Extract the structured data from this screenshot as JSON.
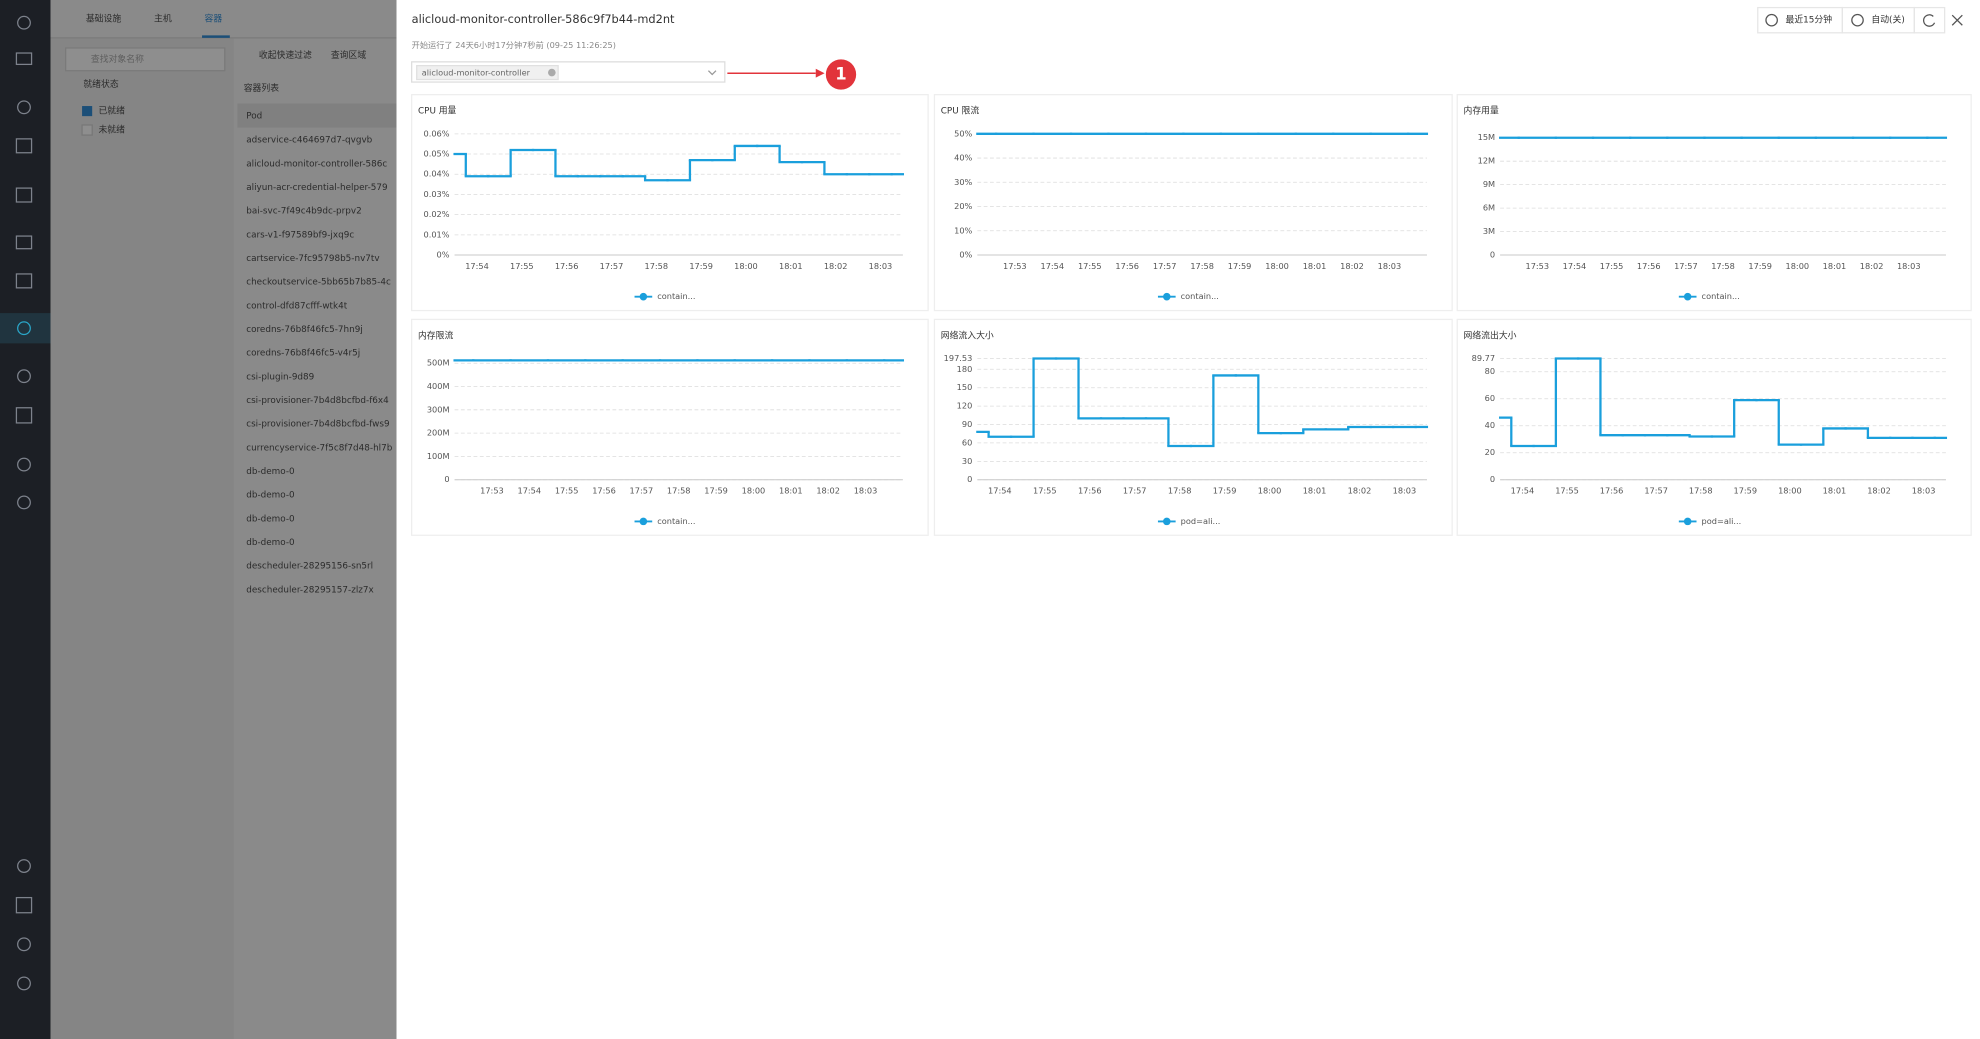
{
  "nav_tabs": [
    "基础设施",
    "主机",
    "容器"
  ],
  "search_placeholder": "查找对象名称",
  "filter": {
    "title": "就绪状态",
    "options": [
      "已就绪",
      "未就绪"
    ]
  },
  "toolbar": [
    "收起快速过滤",
    "查询区域"
  ],
  "list": {
    "title": "容器列表",
    "column": "Pod",
    "rows": [
      "adservice-c464697d7-qvgvb",
      "alicloud-monitor-controller-586c",
      "aliyun-acr-credential-helper-579",
      "bai-svc-7f49c4b9dc-prpv2",
      "cars-v1-f97589bf9-jxq9c",
      "cartservice-7fc95798b5-nv7tv",
      "checkoutservice-5bb65b7b85-4c",
      "control-dfd87cfff-wtk4t",
      "coredns-76b8f46fc5-7hn9j",
      "coredns-76b8f46fc5-v4r5j",
      "csi-plugin-9d89",
      "csi-provisioner-7b4d8bcfbd-f6x4",
      "csi-provisioner-7b4d8bcfbd-fws9",
      "currencyservice-7f5c8f7d48-hl7b",
      "db-demo-0",
      "db-demo-0",
      "db-demo-0",
      "db-demo-0",
      "descheduler-28295156-sn5rl",
      "descheduler-28295157-zlz7x"
    ]
  },
  "drawer": {
    "title": "alicloud-monitor-controller-586c9f7b44-md2nt",
    "subtitle": "开始运行了 24天6小时17分钟7秒前 (09-25 11:26:25)",
    "select_tag": "alicloud-monitor-controller",
    "time_range": "最近15分钟",
    "auto_refresh": "自动(关)",
    "annotation": "1"
  },
  "chart_data": [
    {
      "type": "line",
      "title": "CPU 用量",
      "categories": [
        null,
        "17:54",
        null,
        "17:55",
        null,
        "17:56",
        null,
        "17:57",
        null,
        "17:58",
        null,
        "17:59",
        null,
        "18:00",
        null,
        "18:01",
        null,
        "18:02",
        null,
        "18:03",
        null
      ],
      "series": [
        {
          "name": "contain...",
          "color": "#1a9fdc",
          "values": [
            0.05,
            0.039,
            0.039,
            0.052,
            0.052,
            0.039,
            0.039,
            0.039,
            0.039,
            0.037,
            0.037,
            0.047,
            0.047,
            0.054,
            0.054,
            0.046,
            0.046,
            0.04,
            0.04,
            0.04,
            0.04
          ]
        }
      ],
      "ylim": [
        0,
        0.06
      ],
      "yticks": [
        {
          "value": 0,
          "label": "0%"
        },
        {
          "value": 0.01,
          "label": "0.01%"
        },
        {
          "value": 0.02,
          "label": "0.02%"
        },
        {
          "value": 0.03,
          "label": "0.03%"
        },
        {
          "value": 0.04,
          "label": "0.04%"
        },
        {
          "value": 0.05,
          "label": "0.05%"
        },
        {
          "value": 0.06,
          "label": "0.06%"
        }
      ],
      "grid": true
    },
    {
      "type": "line",
      "title": "CPU 限流",
      "categories": [
        null,
        "17:53",
        "17:54",
        "17:55",
        "17:56",
        "17:57",
        "17:58",
        "17:59",
        "18:00",
        "18:01",
        "18:02",
        "18:03",
        null
      ],
      "series": [
        {
          "name": "contain...",
          "color": "#1a9fdc",
          "values": [
            50,
            50,
            50,
            50,
            50,
            50,
            50,
            50,
            50,
            50,
            50,
            50,
            50
          ]
        }
      ],
      "ylim": [
        0,
        50
      ],
      "yticks": [
        {
          "value": 0,
          "label": "0%"
        },
        {
          "value": 10,
          "label": "10%"
        },
        {
          "value": 20,
          "label": "20%"
        },
        {
          "value": 30,
          "label": "30%"
        },
        {
          "value": 40,
          "label": "40%"
        },
        {
          "value": 50,
          "label": "50%"
        }
      ],
      "grid": true
    },
    {
      "type": "line",
      "title": "内存用量",
      "categories": [
        null,
        "17:53",
        "17:54",
        "17:55",
        "17:56",
        "17:57",
        "17:58",
        "17:59",
        "18:00",
        "18:01",
        "18:02",
        "18:03",
        null
      ],
      "series": [
        {
          "name": "contain...",
          "color": "#1a9fdc",
          "values": [
            15,
            15,
            15,
            15,
            15,
            15,
            15,
            15,
            15,
            15,
            15,
            15,
            15
          ]
        }
      ],
      "ylim": [
        0,
        15.5
      ],
      "yticks": [
        0,
        {
          "value": 3,
          "label": "3M"
        },
        {
          "value": 6,
          "label": "6M"
        },
        {
          "value": 9,
          "label": "9M"
        },
        {
          "value": 12,
          "label": "12M"
        },
        {
          "value": 15,
          "label": "15M"
        }
      ],
      "grid": true
    },
    {
      "type": "line",
      "title": "内存限流",
      "categories": [
        null,
        "17:53",
        "17:54",
        "17:55",
        "17:56",
        "17:57",
        "17:58",
        "17:59",
        "18:00",
        "18:01",
        "18:02",
        "18:03",
        null
      ],
      "series": [
        {
          "name": "contain...",
          "color": "#1a9fdc",
          "values": [
            512,
            512,
            512,
            512,
            512,
            512,
            512,
            512,
            512,
            512,
            512,
            512,
            512
          ]
        }
      ],
      "ylim": [
        0,
        520
      ],
      "yticks": [
        0,
        {
          "value": 100,
          "label": "100M"
        },
        {
          "value": 200,
          "label": "200M"
        },
        {
          "value": 300,
          "label": "300M"
        },
        {
          "value": 400,
          "label": "400M"
        },
        {
          "value": 500,
          "label": "500M"
        }
      ],
      "grid": true
    },
    {
      "type": "line",
      "title": "网络流入大小",
      "categories": [
        null,
        "17:54",
        null,
        "17:55",
        null,
        "17:56",
        null,
        "17:57",
        null,
        "17:58",
        null,
        "17:59",
        null,
        "18:00",
        null,
        "18:01",
        null,
        "18:02",
        null,
        "18:03",
        null
      ],
      "series": [
        {
          "name": "pod=ali...",
          "color": "#1a9fdc",
          "values": [
            78,
            70,
            70,
            197.53,
            197.53,
            100,
            100,
            100,
            100,
            55,
            55,
            170,
            170,
            76,
            76,
            82,
            82,
            86,
            86,
            86,
            86
          ]
        }
      ],
      "ylim": [
        0,
        197.53
      ],
      "yticks": [
        0,
        30,
        60,
        90,
        120,
        150,
        180,
        197.53
      ],
      "grid": true
    },
    {
      "type": "line",
      "title": "网络流出大小",
      "categories": [
        null,
        "17:54",
        null,
        "17:55",
        null,
        "17:56",
        null,
        "17:57",
        null,
        "17:58",
        null,
        "17:59",
        null,
        "18:00",
        null,
        "18:01",
        null,
        "18:02",
        null,
        "18:03",
        null
      ],
      "series": [
        {
          "name": "pod=ali...",
          "color": "#1a9fdc",
          "values": [
            46,
            25,
            25,
            89.77,
            89.77,
            33,
            33,
            33,
            33,
            32,
            32,
            59,
            59,
            26,
            26,
            38,
            38,
            31,
            31,
            31,
            31
          ]
        }
      ],
      "ylim": [
        0,
        89.77
      ],
      "yticks": [
        0,
        20,
        40,
        60,
        80,
        89.77
      ],
      "grid": true
    }
  ]
}
